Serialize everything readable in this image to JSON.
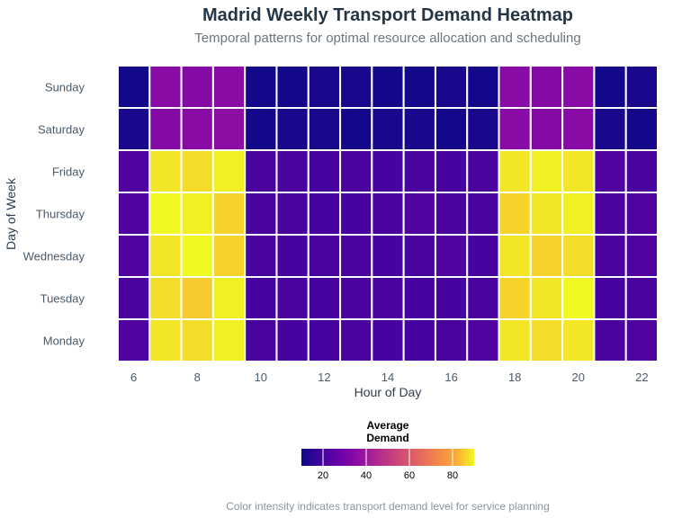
{
  "chart_data": {
    "type": "heatmap",
    "title": "Madrid Weekly Transport Demand Heatmap",
    "subtitle": "Temporal patterns for optimal resource allocation and scheduling",
    "xlabel": "Hour of Day",
    "ylabel": "Day of Week",
    "caption": "Color intensity indicates transport demand level for service planning",
    "x": [
      6,
      7,
      8,
      9,
      10,
      11,
      12,
      13,
      14,
      15,
      16,
      17,
      18,
      19,
      20,
      21,
      22
    ],
    "x_ticks": [
      6,
      8,
      10,
      12,
      14,
      16,
      18,
      20,
      22
    ],
    "y": [
      "Monday",
      "Tuesday",
      "Wednesday",
      "Thursday",
      "Friday",
      "Saturday",
      "Sunday"
    ],
    "values": [
      [
        22,
        88,
        87,
        89,
        21,
        20,
        20,
        21,
        20,
        20,
        21,
        22,
        88,
        87,
        88,
        21,
        22
      ],
      [
        21,
        87,
        85,
        89,
        20,
        21,
        20,
        21,
        21,
        20,
        20,
        21,
        86,
        88,
        90,
        20,
        21
      ],
      [
        22,
        88,
        90,
        86,
        21,
        20,
        21,
        21,
        20,
        21,
        22,
        20,
        88,
        86,
        87,
        21,
        22
      ],
      [
        22,
        90,
        89,
        86,
        21,
        21,
        20,
        20,
        21,
        22,
        21,
        21,
        86,
        88,
        89,
        21,
        22
      ],
      [
        22,
        88,
        87,
        89,
        21,
        21,
        20,
        21,
        20,
        21,
        20,
        21,
        88,
        89,
        88,
        22,
        21
      ],
      [
        12,
        34,
        35,
        36,
        11,
        12,
        12,
        11,
        12,
        12,
        11,
        12,
        35,
        34,
        35,
        12,
        11
      ],
      [
        11,
        35,
        34,
        35,
        11,
        11,
        12,
        12,
        11,
        11,
        12,
        11,
        35,
        34,
        35,
        11,
        12
      ]
    ],
    "colorscale": "plasma",
    "zlim": [
      10,
      90
    ],
    "legend": {
      "title_line1": "Average",
      "title_line2": "Demand",
      "ticks": [
        20,
        40,
        60,
        80
      ],
      "position": "bottom"
    },
    "grid": false
  },
  "colors": {
    "title": "#253746",
    "subtitle": "#6b7680",
    "tick": "#4a5a6a",
    "axis_title": "#2c3e50",
    "caption": "#8a959e",
    "cell_border": "#ffffff"
  }
}
